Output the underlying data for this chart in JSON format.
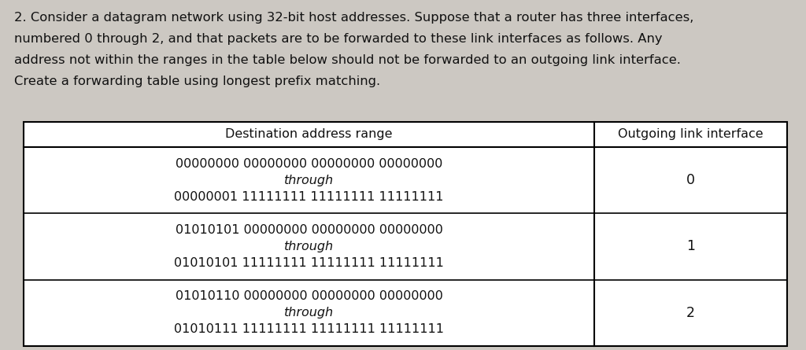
{
  "background_color": "#ccc8c2",
  "paragraph_text": "2. Consider a datagram network using 32-bit host addresses. Suppose that a router has three interfaces,\nnumbered 0 through 2, and that packets are to be forwarded to these link interfaces as follows. Any\naddress not within the ranges in the table below should not be forwarded to an outgoing link interface.\nCreate a forwarding table using longest prefix matching.",
  "col_header_left": "Destination address range",
  "col_header_right": "Outgoing link interface",
  "rows": [
    {
      "address_lines": [
        "00000000 00000000 00000000 00000000",
        "through",
        "00000001 11111111 11111111 11111111"
      ],
      "interface": "0"
    },
    {
      "address_lines": [
        "01010101 00000000 00000000 00000000",
        "through",
        "01010101 11111111 11111111 11111111"
      ],
      "interface": "1"
    },
    {
      "address_lines": [
        "01010110 00000000 00000000 00000000",
        "through",
        "01010111 11111111 11111111 11111111"
      ],
      "interface": "2"
    }
  ],
  "font_size_paragraph": 11.8,
  "font_size_table": 11.5,
  "font_size_header": 11.5,
  "text_color": "#111111"
}
